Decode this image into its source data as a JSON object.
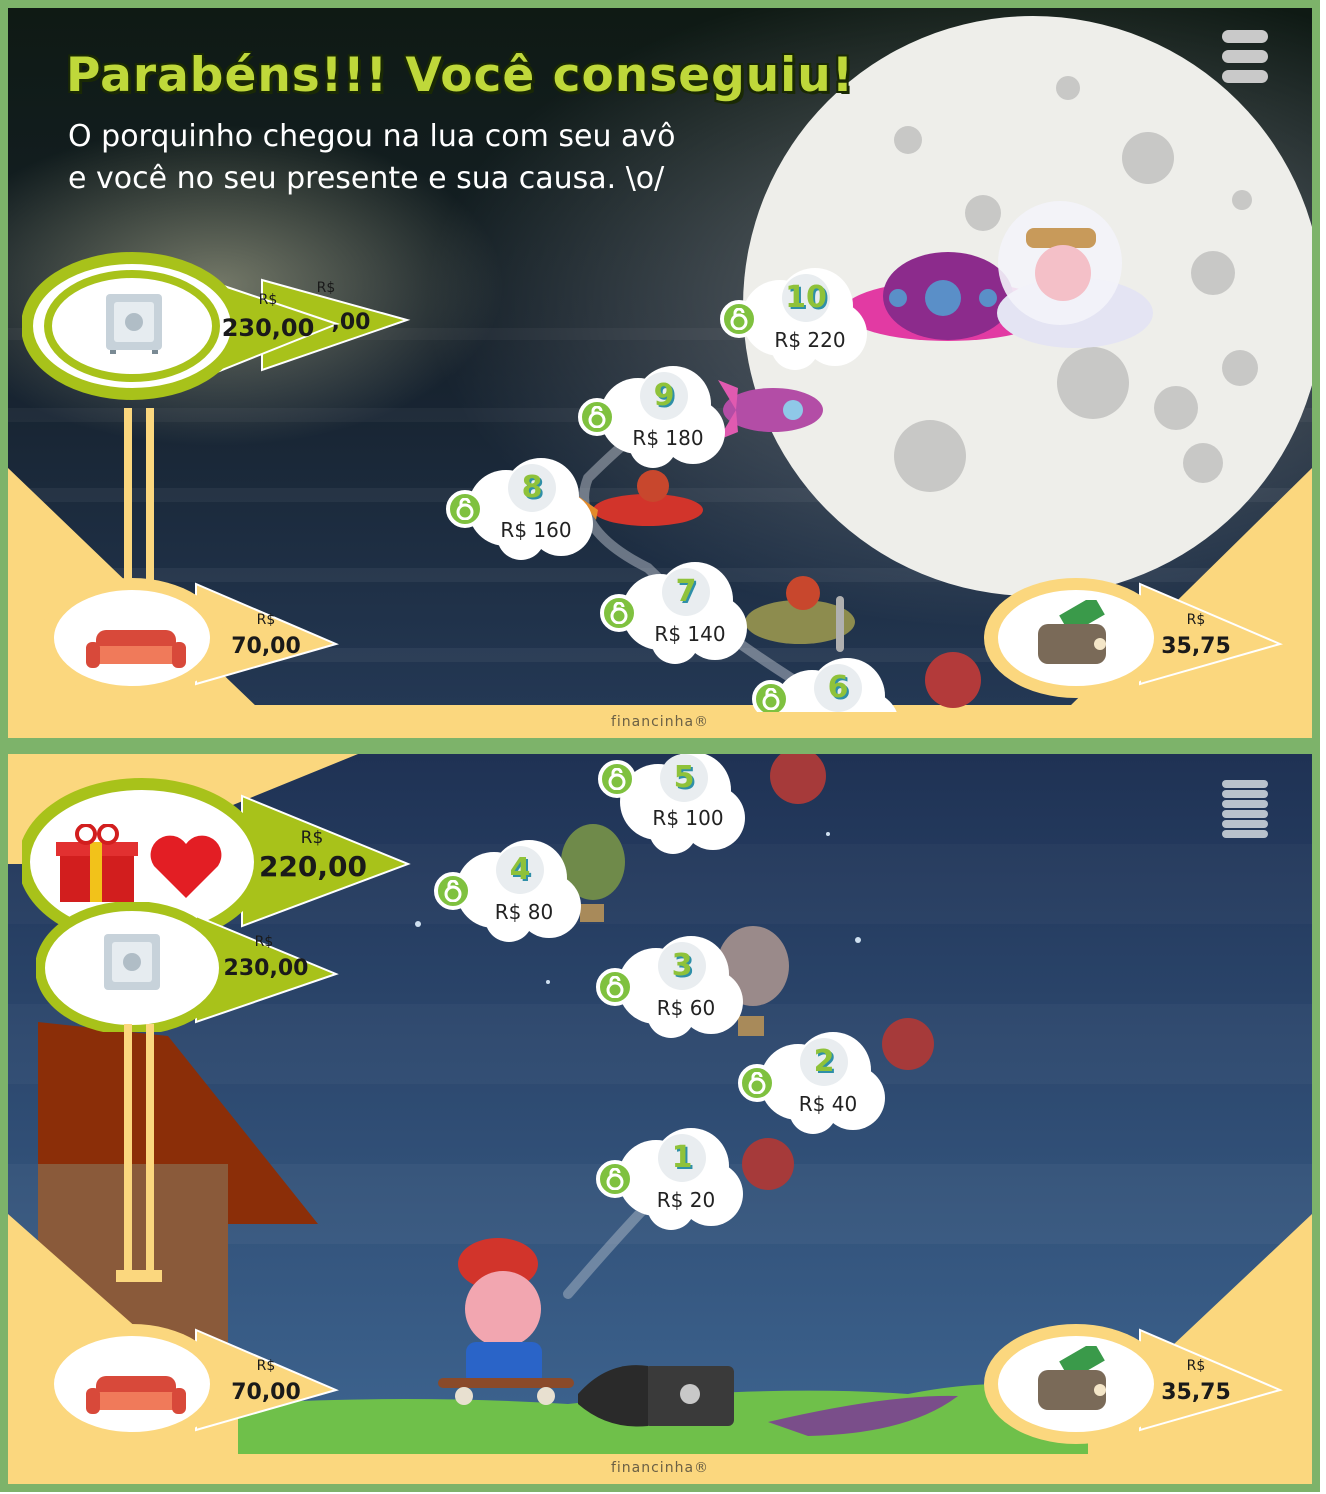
{
  "top_panel": {
    "title": "Parabéns!!! Você conseguiu!",
    "subtitle_line1": "O porquinho chegou na lua com seu avô",
    "subtitle_line2": "e você no seu presente e sua causa. \\o/",
    "safe": {
      "currency": "R$",
      "value": "230,00",
      "back_currency": "R$",
      "back_value": ",00"
    },
    "sofa": {
      "currency": "R$",
      "value": "70,00"
    },
    "wallet": {
      "currency": "R$",
      "value": "35,75"
    },
    "levels": [
      {
        "number": "10",
        "price": "R$ 220"
      },
      {
        "number": "9",
        "price": "R$ 180"
      },
      {
        "number": "8",
        "price": "R$ 160"
      },
      {
        "number": "7",
        "price": "R$ 140"
      },
      {
        "number": "6",
        "price": ""
      }
    ],
    "brand": "financinha®"
  },
  "bottom_panel": {
    "gift_goal": {
      "currency": "R$",
      "value": "220,00"
    },
    "safe": {
      "currency": "R$",
      "value": "230,00"
    },
    "sofa": {
      "currency": "R$",
      "value": "70,00"
    },
    "wallet": {
      "currency": "R$",
      "value": "35,75"
    },
    "levels": [
      {
        "number": "5",
        "price": "R$ 100"
      },
      {
        "number": "4",
        "price": "R$ 80"
      },
      {
        "number": "3",
        "price": "R$ 60"
      },
      {
        "number": "2",
        "price": "R$ 40"
      },
      {
        "number": "1",
        "price": "R$ 20"
      }
    ],
    "brand": "financinha®"
  },
  "colors": {
    "accent_green": "#bfd83a",
    "lock_green": "#7fc13f",
    "hud_cream": "#fbd77e",
    "border": "#7db36a"
  },
  "icons": [
    "menu-icon",
    "safe-icon",
    "sofa-icon",
    "wallet-icon",
    "gift-icon",
    "heart-icon",
    "lock-open-icon",
    "moon",
    "ufo",
    "rocket",
    "plane",
    "balloon",
    "skateboard-pig"
  ]
}
